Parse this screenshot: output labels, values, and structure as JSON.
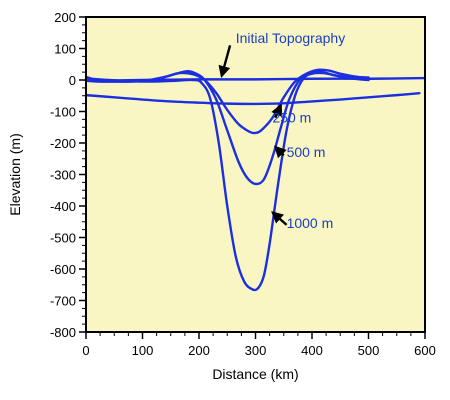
{
  "chart_data": {
    "type": "line",
    "title": "",
    "xlabel": "Distance (km)",
    "ylabel": "Elevation (m)",
    "xlim": [
      0,
      600
    ],
    "ylim": [
      -800,
      200
    ],
    "xticks": [
      0,
      100,
      200,
      300,
      400,
      500,
      600
    ],
    "yticks": [
      200,
      100,
      0,
      -100,
      -200,
      -300,
      -400,
      -500,
      -600,
      -700,
      -800
    ],
    "x_minor_step": 25,
    "y_minor_step": 25,
    "grid": false,
    "colors": {
      "plot_background": "#faf6c4",
      "series": "#1b2fe0",
      "annotation_text": "#1a3fbf",
      "arrow": "#000000"
    },
    "series": [
      {
        "x": [
          0,
          100,
          200,
          300,
          400,
          500,
          600
        ],
        "y": [
          -3,
          0,
          2,
          2,
          4,
          4,
          6
        ]
      },
      {
        "x": [
          0,
          20,
          60,
          100,
          140,
          165,
          190,
          210,
          230,
          250,
          270,
          290,
          300,
          310,
          330,
          350,
          370,
          390,
          410,
          430,
          450,
          480,
          500
        ],
        "y": [
          -2,
          -5,
          -5,
          -3,
          10,
          22,
          18,
          0,
          -40,
          -95,
          -140,
          -165,
          -168,
          -160,
          -120,
          -55,
          -5,
          20,
          32,
          30,
          20,
          10,
          8
        ]
      },
      {
        "x": [
          0,
          20,
          60,
          100,
          130,
          160,
          180,
          195,
          210,
          230,
          250,
          270,
          285,
          300,
          315,
          330,
          345,
          360,
          380,
          400,
          420,
          440,
          470,
          500
        ],
        "y": [
          10,
          0,
          -5,
          -3,
          5,
          20,
          28,
          20,
          0,
          -60,
          -160,
          -260,
          -310,
          -330,
          -315,
          -245,
          -150,
          -60,
          5,
          25,
          25,
          15,
          8,
          5
        ],
        "gap_after": 12
      },
      {
        "x": [
          0,
          40,
          100,
          150,
          190,
          205,
          220,
          235,
          250,
          265,
          280,
          295,
          305,
          315,
          325,
          340,
          355,
          370,
          385,
          400,
          420,
          440,
          470,
          500
        ],
        "y": [
          5,
          0,
          -5,
          -3,
          0,
          -10,
          -60,
          -200,
          -400,
          -560,
          -640,
          -665,
          -660,
          -620,
          -520,
          -330,
          -160,
          -50,
          5,
          20,
          22,
          15,
          5,
          0
        ]
      },
      {
        "x": [
          0,
          50,
          100,
          150,
          200,
          250,
          300,
          350,
          400,
          450,
          500,
          550,
          590
        ],
        "y": [
          -48,
          -55,
          -62,
          -68,
          -72,
          -75,
          -76,
          -74,
          -68,
          -62,
          -55,
          -48,
          -42
        ]
      }
    ],
    "annotations": [
      {
        "text": "Initial Topography",
        "text_x": 265,
        "text_y": 118,
        "arrow_from": [
          255,
          110
        ],
        "arrow_to": [
          240,
          12
        ]
      },
      {
        "text": "250 m",
        "text_x": 330,
        "text_y": -135,
        "arrow_from": [
          335,
          -120
        ],
        "arrow_to": [
          345,
          -80
        ]
      },
      {
        "text": "500 m",
        "text_x": 355,
        "text_y": -245,
        "arrow_from": [
          350,
          -240
        ],
        "arrow_to": [
          335,
          -212
        ]
      },
      {
        "text": "1000 m",
        "text_x": 355,
        "text_y": -470,
        "arrow_from": [
          355,
          -460
        ],
        "arrow_to": [
          330,
          -420
        ]
      }
    ]
  }
}
